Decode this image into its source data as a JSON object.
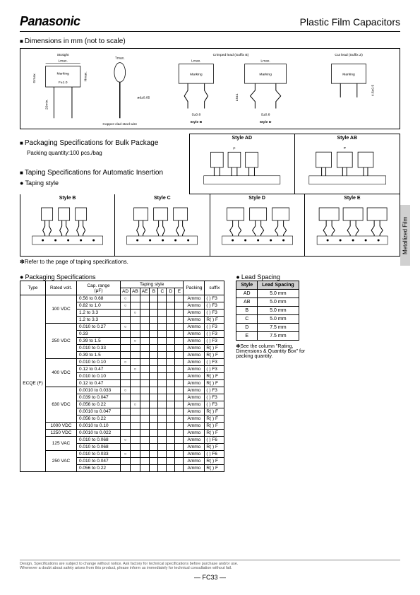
{
  "brand": "Panasonic",
  "title": "Plastic Film Capacitors",
  "s1": "Dimensions in mm (not to scale)",
  "dims": {
    "straight": "Straight",
    "lmax": "Lmax.",
    "tmax": "Tmax.",
    "crimped": "Crimped lead (Suffix B)",
    "cut": "Cut lead (Suffix Z)",
    "marking": "Marking",
    "gmax": "Gmax.",
    "hmax": "Hmax.",
    "f": "F±1.0",
    "min20": "20min.",
    "wire": "Copper-clad steel wire",
    "d": "ød±0.05",
    "styleB": "Style B",
    "styleD": "Style D",
    "ls": "L5±1",
    "s": "S±0.8",
    "z45": "4.5±0.5"
  },
  "s2": "Packaging Specifications for Bulk Package",
  "s2sub": "Packing quantity:100 pcs./bag",
  "styleAD": "Style AD",
  "styleAB": "Style AB",
  "s3": "Taping Specifications for Automatic Insertion",
  "s3sub": "Taping style",
  "styleB2": "Style B",
  "styleC": "Style C",
  "styleD2": "Style D",
  "styleE": "Style E",
  "note1": "Refer to the page of taping specifications.",
  "s4": "Packaging Specifications",
  "sideTab": "Metallized Film",
  "packTable": {
    "headers": {
      "type": "Type",
      "volt": "Rated volt.",
      "range": "Cap. range\n(μF)",
      "tstyle": "Taping style",
      "cols": [
        "AD",
        "AB",
        "AE",
        "B",
        "C",
        "D",
        "E"
      ],
      "packing": "Packing",
      "suffix": "suffix"
    },
    "typeVal": "ECQE (F)",
    "rows": [
      {
        "v": "100 VDC",
        "r": "0.56 to 0.68",
        "t": [
          1,
          0,
          0,
          0,
          0,
          0,
          0
        ],
        "p": "Ammo",
        "s": "(   ) F3"
      },
      {
        "v": "",
        "r": "0.82 to 1.0",
        "t": [
          1,
          0,
          0,
          0,
          0,
          0,
          0
        ],
        "p": "Ammo",
        "s": "(   ) F3"
      },
      {
        "v": "",
        "r": "1.2 to 3.3",
        "t": [
          0,
          1,
          0,
          0,
          0,
          0,
          0
        ],
        "p": "Ammo",
        "s": "(   ) F3"
      },
      {
        "v": "",
        "r": "1.2 to 3.3",
        "t": [
          0,
          0,
          0,
          0,
          0,
          0,
          0
        ],
        "p": "Ammo",
        "s": "R(   ) F"
      },
      {
        "v": "250 VDC",
        "r": "0.010 to 0.27",
        "t": [
          1,
          0,
          0,
          0,
          0,
          0,
          0
        ],
        "p": "Ammo",
        "s": "(   ) F3"
      },
      {
        "v": "",
        "r": "0.33",
        "t": [
          0,
          0,
          0,
          0,
          0,
          0,
          0
        ],
        "p": "Ammo",
        "s": "(   ) F3"
      },
      {
        "v": "",
        "r": "0.39 to 1.5",
        "t": [
          0,
          1,
          0,
          0,
          0,
          0,
          0
        ],
        "p": "Ammo",
        "s": "(   ) F3"
      },
      {
        "v": "",
        "r": "0.010 to 0.33",
        "t": [
          0,
          0,
          0,
          0,
          0,
          0,
          0
        ],
        "p": "Ammo",
        "s": "R(   ) F"
      },
      {
        "v": "",
        "r": "0.39 to 1.5",
        "t": [
          0,
          0,
          0,
          0,
          0,
          0,
          0
        ],
        "p": "Ammo",
        "s": "R(   ) F"
      },
      {
        "v": "400 VDC",
        "r": "0.010 to 0.10",
        "t": [
          1,
          0,
          0,
          0,
          0,
          0,
          0
        ],
        "p": "Ammo",
        "s": "(   ) F3"
      },
      {
        "v": "",
        "r": "0.12 to 0.47",
        "t": [
          0,
          1,
          0,
          0,
          0,
          0,
          0
        ],
        "p": "Ammo",
        "s": "(   ) F3"
      },
      {
        "v": "",
        "r": "0.010 to 0.10",
        "t": [
          0,
          0,
          0,
          0,
          0,
          0,
          0
        ],
        "p": "Ammo",
        "s": "R(   ) F"
      },
      {
        "v": "",
        "r": "0.12 to 0.47",
        "t": [
          0,
          0,
          0,
          0,
          0,
          0,
          0
        ],
        "p": "Ammo",
        "s": "R(   ) F"
      },
      {
        "v": "630 VDC",
        "r": "0.0010 to 0.033",
        "t": [
          1,
          0,
          0,
          0,
          0,
          0,
          0
        ],
        "p": "Ammo",
        "s": "(   ) F3"
      },
      {
        "v": "",
        "r": "0.039 to 0.047",
        "t": [
          0,
          0,
          0,
          0,
          0,
          0,
          0
        ],
        "p": "Ammo",
        "s": "(   ) F3"
      },
      {
        "v": "",
        "r": "0.056 to 0.22",
        "t": [
          0,
          1,
          0,
          0,
          0,
          0,
          0
        ],
        "p": "Ammo",
        "s": "(   ) F3"
      },
      {
        "v": "",
        "r": "0.0010 to 0.047",
        "t": [
          0,
          0,
          0,
          0,
          0,
          0,
          0
        ],
        "p": "Ammo",
        "s": "R(   ) F"
      },
      {
        "v": "",
        "r": "0.056 to 0.22",
        "t": [
          0,
          0,
          0,
          0,
          0,
          0,
          0
        ],
        "p": "Ammo",
        "s": "R(   ) F"
      },
      {
        "v": "1000 VDC",
        "r": "0.0010 to 0.10",
        "t": [
          0,
          0,
          0,
          0,
          0,
          0,
          0
        ],
        "p": "Ammo",
        "s": "R(   ) F"
      },
      {
        "v": "1250 VDC",
        "r": "0.0010 to 0.022",
        "t": [
          0,
          0,
          0,
          0,
          0,
          0,
          0
        ],
        "p": "Ammo",
        "s": "R(   ) F"
      },
      {
        "v": "125 VAC",
        "r": "0.010 to 0.068",
        "t": [
          1,
          0,
          0,
          0,
          0,
          0,
          0
        ],
        "p": "Ammo",
        "s": "(   ) F6"
      },
      {
        "v": "",
        "r": "0.010 to 0.068",
        "t": [
          0,
          0,
          0,
          0,
          0,
          0,
          0
        ],
        "p": "Ammo",
        "s": "R(   ) F"
      },
      {
        "v": "250 VAC",
        "r": "0.010 to 0.033",
        "t": [
          1,
          0,
          0,
          0,
          0,
          0,
          0
        ],
        "p": "Ammo",
        "s": "(   ) F6"
      },
      {
        "v": "",
        "r": "0.010 to 0.047",
        "t": [
          0,
          0,
          0,
          0,
          0,
          0,
          0
        ],
        "p": "Ammo",
        "s": "R(   ) F"
      },
      {
        "v": "",
        "r": "0.056 to 0.22",
        "t": [
          0,
          0,
          0,
          0,
          0,
          0,
          0
        ],
        "p": "Ammo",
        "s": "R(   ) F"
      }
    ]
  },
  "leadTitle": "Lead Spacing",
  "leadTable": {
    "h1": "Style",
    "h2": "Lead Spacing",
    "rows": [
      {
        "s": "AD",
        "v": "5.0 mm"
      },
      {
        "s": "AB",
        "v": "5.0 mm"
      },
      {
        "s": "B",
        "v": "5.0 mm"
      },
      {
        "s": "C",
        "v": "5.0 mm"
      },
      {
        "s": "D",
        "v": "7.5 mm"
      },
      {
        "s": "E",
        "v": "7.5 mm"
      }
    ]
  },
  "leadNote": "See the column \"Rating, Dimensions & Quantity Box\" for packing quantity.",
  "footer1": "Design, Specifications are subject to change without notice.       Ask factory for technical specifications before purchase and/or use.",
  "footer2": "Whenever a doubt about safety arises from this product, please inform us immediately for technical consultation without fail.",
  "pageNum": "—  FC33  —"
}
